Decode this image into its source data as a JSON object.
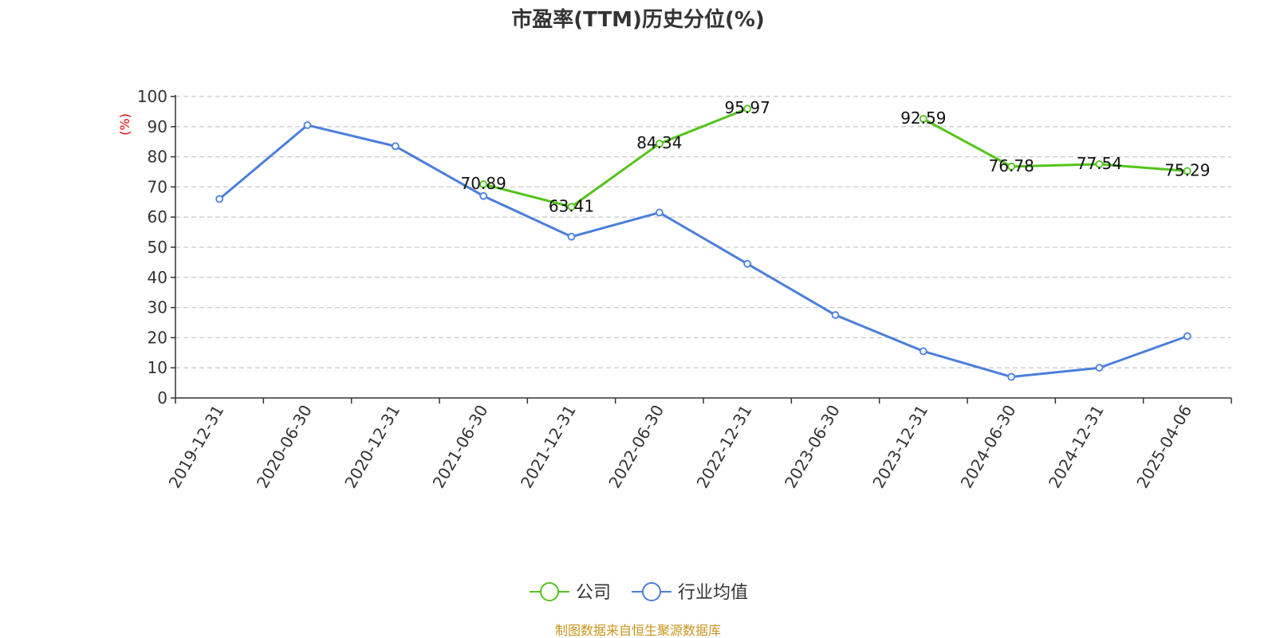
{
  "chart_data": {
    "type": "line",
    "title": "市盈率(TTM)历史分位(%)",
    "ylabel": "(%)",
    "ylim": [
      0,
      100
    ],
    "yticks": [
      0,
      10,
      20,
      30,
      40,
      50,
      60,
      70,
      80,
      90,
      100
    ],
    "categories": [
      "2019-12-31",
      "2020-06-30",
      "2020-12-31",
      "2021-06-30",
      "2021-12-31",
      "2022-06-30",
      "2022-12-31",
      "2023-06-30",
      "2023-12-31",
      "2024-06-30",
      "2024-12-31",
      "2025-04-06"
    ],
    "grid": true,
    "legend_position": "bottom",
    "series": [
      {
        "name": "公司",
        "color": "#52c41a",
        "labels": true,
        "values": [
          null,
          null,
          null,
          70.89,
          63.41,
          84.34,
          95.97,
          null,
          92.59,
          76.78,
          77.54,
          75.29
        ]
      },
      {
        "name": "行业均值",
        "color": "#4a7fdc",
        "labels": false,
        "values": [
          66,
          90.5,
          83.5,
          67,
          53.5,
          61.5,
          44.5,
          27.5,
          15.5,
          7,
          10,
          20.5
        ]
      }
    ],
    "source": "制图数据来自恒生聚源数据库"
  }
}
